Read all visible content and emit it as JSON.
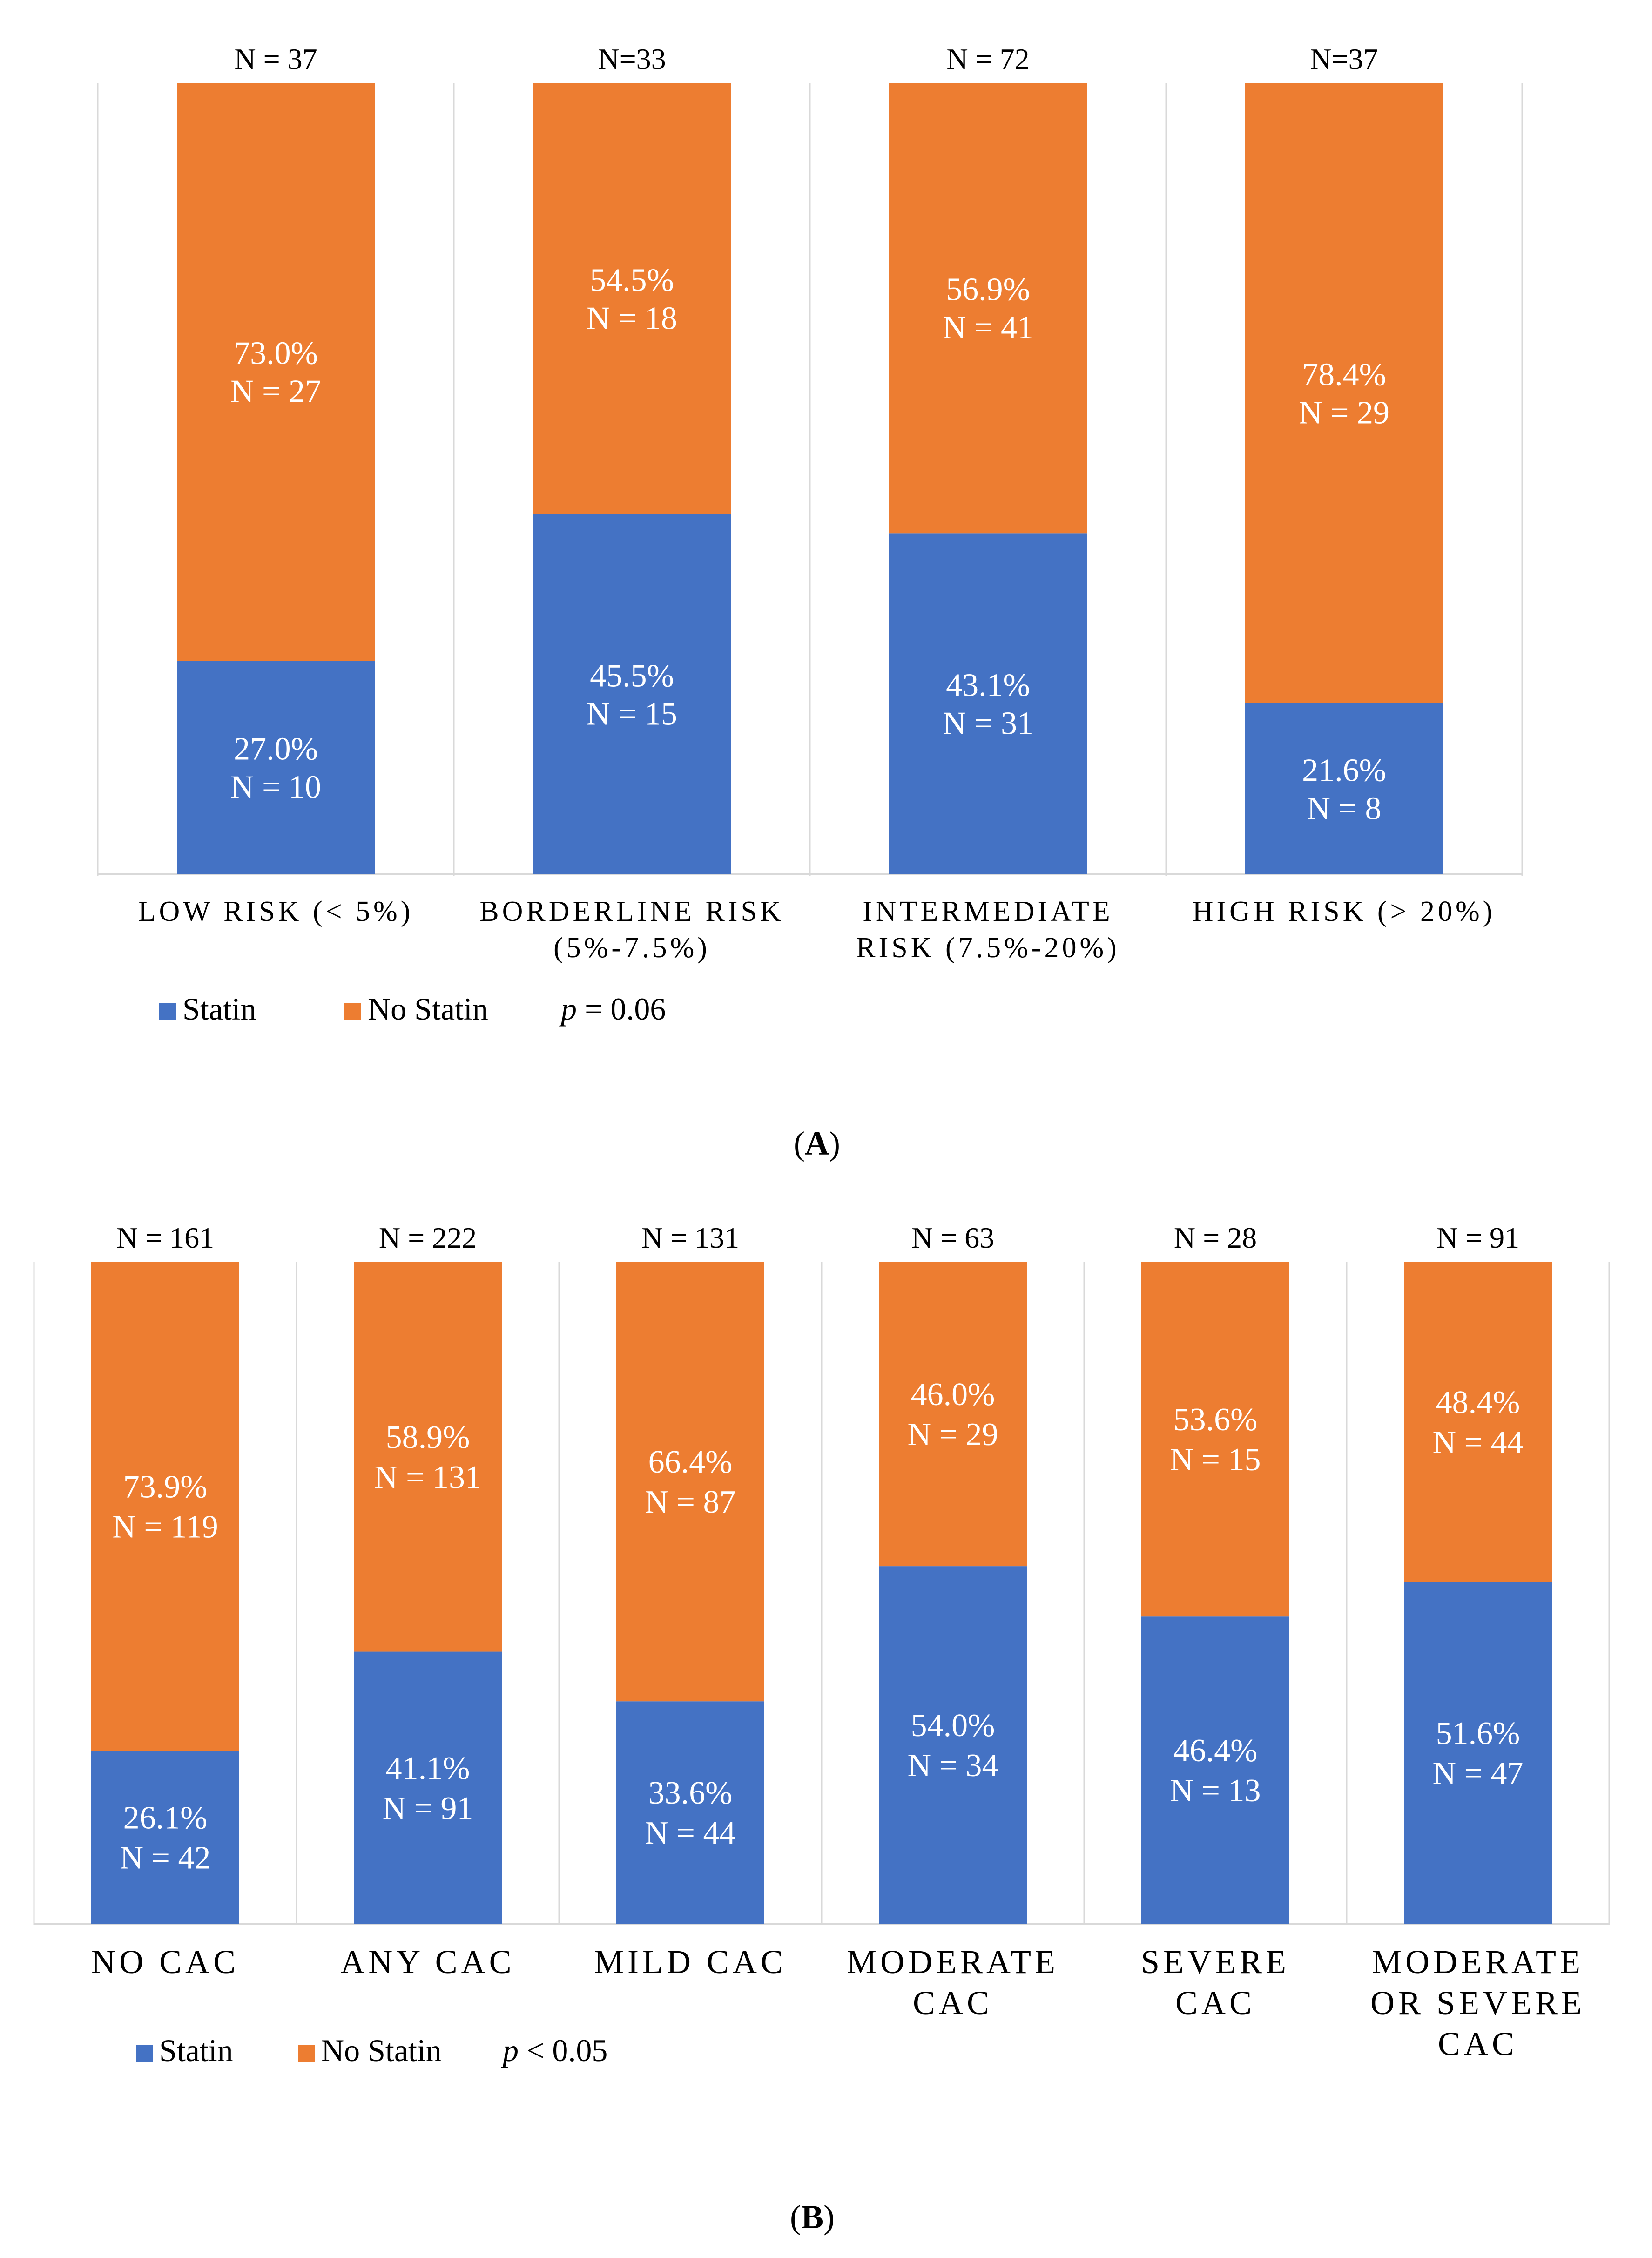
{
  "panels": [
    {
      "label": "(A)",
      "letter": "A"
    },
    {
      "label": "(B)",
      "letter": "B"
    }
  ],
  "chart_data": [
    {
      "type": "bar",
      "stacked": true,
      "normalized": true,
      "title": "",
      "xlabel": "",
      "ylabel": "",
      "ylim": [
        0,
        100
      ],
      "grid": false,
      "legend": {
        "position": "bottom-left",
        "entries": [
          "Statin",
          "No Statin"
        ]
      },
      "annotation": {
        "p_symbol": "p",
        "p_text": " = 0.06"
      },
      "categories": [
        {
          "lines": [
            "LOW RISK (< 5%)"
          ],
          "total": "N = 37"
        },
        {
          "lines": [
            "BORDERLINE RISK",
            "(5%-7.5%)"
          ],
          "total": "N=33"
        },
        {
          "lines": [
            "INTERMEDIATE",
            "RISK (7.5%-20%)"
          ],
          "total": "N = 72"
        },
        {
          "lines": [
            "HIGH RISK (> 20%)"
          ],
          "total": "N=37"
        }
      ],
      "series": [
        {
          "name": "Statin",
          "color": "#4472c4",
          "values": [
            27.0,
            45.5,
            43.1,
            21.6
          ],
          "labels": [
            [
              "27.0%",
              "N = 10"
            ],
            [
              "45.5%",
              "N = 15"
            ],
            [
              "43.1%",
              "N = 31"
            ],
            [
              "21.6%",
              "N = 8"
            ]
          ]
        },
        {
          "name": "No Statin",
          "color": "#ed7d31",
          "values": [
            73.0,
            54.5,
            56.9,
            78.4
          ],
          "labels": [
            [
              "73.0%",
              "N = 27"
            ],
            [
              "54.5%",
              "N = 18"
            ],
            [
              "56.9%",
              "N = 41"
            ],
            [
              "78.4%",
              "N = 29"
            ]
          ]
        }
      ]
    },
    {
      "type": "bar",
      "stacked": true,
      "normalized": true,
      "title": "",
      "xlabel": "",
      "ylabel": "",
      "ylim": [
        0,
        100
      ],
      "grid": false,
      "legend": {
        "position": "bottom-left",
        "entries": [
          "Statin",
          "No Statin"
        ]
      },
      "annotation": {
        "p_symbol": "p",
        "p_text": " < 0.05"
      },
      "categories": [
        {
          "lines": [
            "NO CAC"
          ],
          "total": "N = 161"
        },
        {
          "lines": [
            "ANY CAC"
          ],
          "total": "N = 222"
        },
        {
          "lines": [
            "MILD CAC"
          ],
          "total": "N = 131"
        },
        {
          "lines": [
            "MODERATE",
            "CAC"
          ],
          "total": "N = 63"
        },
        {
          "lines": [
            "SEVERE",
            "CAC"
          ],
          "total": "N = 28"
        },
        {
          "lines": [
            "MODERATE",
            "OR SEVERE",
            "CAC"
          ],
          "total": "N = 91"
        }
      ],
      "series": [
        {
          "name": "Statin",
          "color": "#4472c4",
          "values": [
            26.1,
            41.1,
            33.6,
            54.0,
            46.4,
            51.6
          ],
          "labels": [
            [
              "26.1%",
              "N = 42"
            ],
            [
              "41.1%",
              "N = 91"
            ],
            [
              "33.6%",
              "N = 44"
            ],
            [
              "54.0%",
              "N = 34"
            ],
            [
              "46.4%",
              "N = 13"
            ],
            [
              "51.6%",
              "N = 47"
            ]
          ]
        },
        {
          "name": "No Statin",
          "color": "#ed7d31",
          "values": [
            73.9,
            58.9,
            66.4,
            46.0,
            53.6,
            48.4
          ],
          "labels": [
            [
              "73.9%",
              "N = 119"
            ],
            [
              "58.9%",
              "N = 131"
            ],
            [
              "66.4%",
              "N = 87"
            ],
            [
              "46.0%",
              "N = 29"
            ],
            [
              "53.6%",
              "N = 15"
            ],
            [
              "48.4%",
              "N = 44"
            ]
          ]
        }
      ]
    }
  ]
}
